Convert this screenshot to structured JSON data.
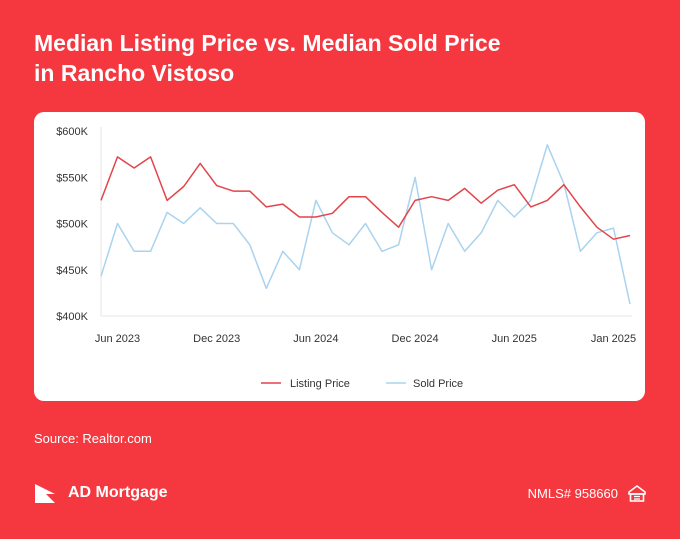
{
  "title_line1": "Median Listing Price vs. Median Sold Price",
  "title_line2": "in Rancho Vistoso",
  "source": "Source: Realtor.com",
  "brand": {
    "name": "AD Mortgage"
  },
  "nmls": "NMLS# 958660",
  "colors": {
    "background": "#f5383f",
    "listing": "#e2444b",
    "sold": "#a9d3ee"
  },
  "chart_data": {
    "type": "line",
    "title": "Median Listing Price vs. Median Sold Price in Rancho Vistoso",
    "xlabel": "",
    "ylabel": "",
    "x": [
      "2023-05",
      "2023-06",
      "2023-07",
      "2023-08",
      "2023-09",
      "2023-10",
      "2023-11",
      "2023-12",
      "2024-01",
      "2024-02",
      "2024-03",
      "2024-04",
      "2024-05",
      "2024-06",
      "2024-07",
      "2024-08",
      "2024-09",
      "2024-10",
      "2024-11",
      "2024-12",
      "2025-01",
      "2025-02",
      "2025-03",
      "2025-04",
      "2025-05",
      "2025-06",
      "2025-07",
      "2025-08",
      "2025-09",
      "2025-10",
      "2025-11",
      "2025-12",
      "2026-01"
    ],
    "x_ticks": [
      "Jun 2023",
      "Dec 2023",
      "Jun 2024",
      "Dec 2024",
      "Jun 2025",
      "Jan 2025"
    ],
    "y_ticks": [
      "$400K",
      "$450K",
      "$500K",
      "$550K",
      "$600K"
    ],
    "ylim": [
      400,
      600
    ],
    "y_unit": "$K",
    "legend_position": "bottom-center",
    "grid": false,
    "series": [
      {
        "name": "Listing Price",
        "color": "#e2444b",
        "values": [
          525,
          572,
          560,
          572,
          525,
          540,
          565,
          541,
          535,
          535,
          518,
          521,
          507,
          507,
          511,
          529,
          529,
          512,
          496,
          525,
          529,
          525,
          538,
          522,
          536,
          542,
          518,
          525,
          542,
          518,
          496,
          483,
          487
        ]
      },
      {
        "name": "Sold Price",
        "color": "#a9d3ee",
        "values": [
          443,
          500,
          470,
          470,
          512,
          500,
          517,
          500,
          500,
          477,
          430,
          470,
          450,
          525,
          490,
          477,
          500,
          470,
          477,
          550,
          450,
          500,
          470,
          490,
          525,
          507,
          525,
          585,
          543,
          470,
          490,
          495,
          413
        ]
      }
    ]
  }
}
